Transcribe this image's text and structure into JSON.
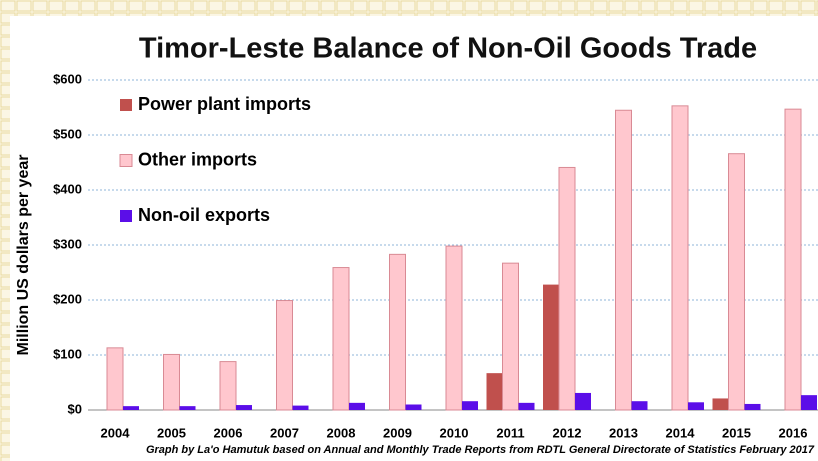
{
  "chart_data": {
    "type": "bar",
    "title": "Timor-Leste Balance of Non-Oil Goods Trade",
    "ylabel": "Million US dollars per year",
    "source": "Graph by La'o Hamutuk based on Annual and Monthly Trade Reports from RDTL General Directorate of Statistics February 2017",
    "categories": [
      "2004",
      "2005",
      "2006",
      "2007",
      "2008",
      "2009",
      "2010",
      "2011",
      "2012",
      "2013",
      "2014",
      "2015",
      "2016"
    ],
    "series": [
      {
        "name": "Power plant imports",
        "color": "#c0504d",
        "values": [
          null,
          null,
          null,
          null,
          null,
          null,
          null,
          67,
          228,
          null,
          null,
          21,
          null
        ]
      },
      {
        "name": "Other imports",
        "color": "#ffc7ce",
        "values": [
          113,
          101,
          88,
          199,
          259,
          283,
          298,
          267,
          441,
          545,
          553,
          466,
          547
        ]
      },
      {
        "name": "Non-oil exports",
        "color": "#5b0ee8",
        "values": [
          7,
          7,
          9,
          8,
          13,
          10,
          16,
          13,
          31,
          16,
          14,
          11,
          27
        ]
      }
    ],
    "ylim": [
      0,
      600
    ],
    "yticks": [
      {
        "value": 0,
        "label": "$0"
      },
      {
        "value": 100,
        "label": "$100"
      },
      {
        "value": 200,
        "label": "$200"
      },
      {
        "value": 300,
        "label": "$300"
      },
      {
        "value": 400,
        "label": "$400"
      },
      {
        "value": 500,
        "label": "$500"
      },
      {
        "value": 600,
        "label": "$600"
      }
    ],
    "grid": true,
    "legend": "upper left"
  }
}
